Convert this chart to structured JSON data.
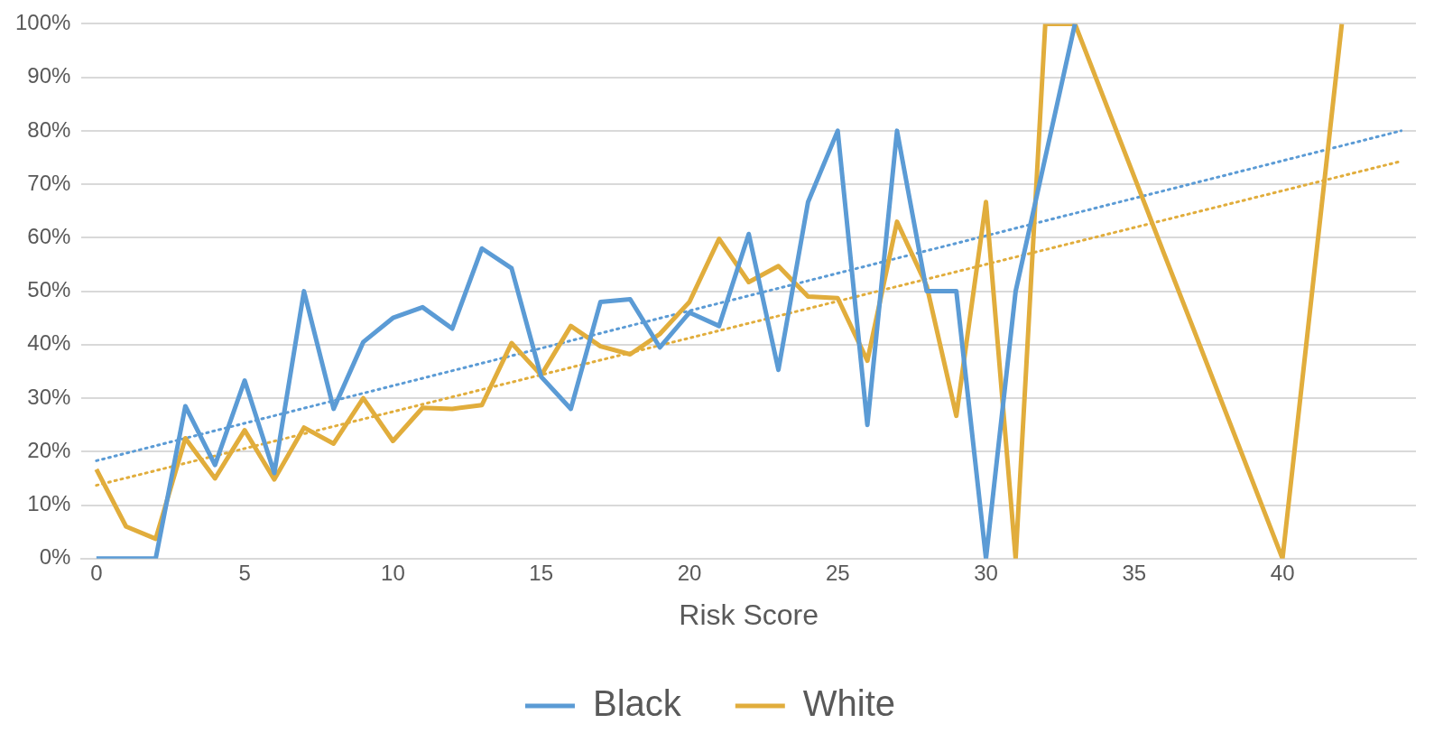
{
  "chart_data": {
    "type": "line",
    "xlabel": "Risk Score",
    "xlim": [
      -0.5,
      44.5
    ],
    "xticks": [
      0,
      5,
      10,
      15,
      20,
      25,
      30,
      35,
      40
    ],
    "ylim": [
      0,
      100
    ],
    "yticks": [
      {
        "value": 0,
        "label": "0%"
      },
      {
        "value": 10,
        "label": "10%"
      },
      {
        "value": 20,
        "label": "20%"
      },
      {
        "value": 30,
        "label": "30%"
      },
      {
        "value": 40,
        "label": "40%"
      },
      {
        "value": 50,
        "label": "50%"
      },
      {
        "value": 60,
        "label": "60%"
      },
      {
        "value": 70,
        "label": "70%"
      },
      {
        "value": 80,
        "label": "80%"
      },
      {
        "value": 90,
        "label": "90%"
      },
      {
        "value": 100,
        "label": "100%"
      }
    ],
    "grid": "y",
    "legend": "bottom",
    "marker": "none",
    "line_style": "solid",
    "series": [
      {
        "name": "Black",
        "color": "#5b9bd5",
        "x": [
          0,
          1,
          2,
          3,
          4,
          5,
          6,
          7,
          8,
          9,
          10,
          11,
          12,
          13,
          14,
          15,
          16,
          17,
          18,
          19,
          20,
          21,
          22,
          23,
          24,
          25,
          26,
          27,
          28,
          29,
          30,
          31,
          32,
          33
        ],
        "values": [
          0,
          0,
          0,
          28.5,
          17.5,
          33.3,
          16,
          50,
          28,
          40.5,
          45,
          47,
          43,
          58,
          54.3,
          34,
          28,
          48,
          48.5,
          39.5,
          46,
          43.5,
          60.7,
          35.3,
          66.7,
          80,
          25,
          80,
          50,
          50,
          0,
          50,
          75,
          100
        ]
      },
      {
        "name": "White",
        "color": "#e1ad3c",
        "x": [
          0,
          1,
          2,
          3,
          4,
          5,
          6,
          7,
          8,
          9,
          10,
          11,
          12,
          13,
          14,
          15,
          16,
          17,
          18,
          19,
          20,
          21,
          22,
          23,
          24,
          25,
          26,
          27,
          28,
          29,
          30,
          31,
          32,
          33,
          34,
          35,
          36,
          37,
          38,
          39,
          40,
          41,
          42
        ],
        "values": [
          16.7,
          6,
          3.7,
          22.5,
          15,
          24,
          14.8,
          24.5,
          21.5,
          30,
          22,
          28.2,
          28,
          28.7,
          40.3,
          34.3,
          43.5,
          39.7,
          38.2,
          42,
          48,
          59.8,
          51.7,
          54.7,
          49,
          48.7,
          37,
          63,
          51,
          26.7,
          66.7,
          0,
          100,
          100,
          85.7,
          71.4,
          57.1,
          42.9,
          28.6,
          14.3,
          0,
          50,
          100
        ]
      },
      {
        "type": "line",
        "color": "#5b9bd5",
        "line_style": "dotted",
        "x": [
          0,
          44
        ],
        "values": [
          18.3,
          80
        ]
      },
      {
        "type": "line",
        "color": "#e1ad3c",
        "line_style": "dotted",
        "x": [
          0,
          44
        ],
        "values": [
          13.7,
          74.3
        ]
      }
    ]
  }
}
